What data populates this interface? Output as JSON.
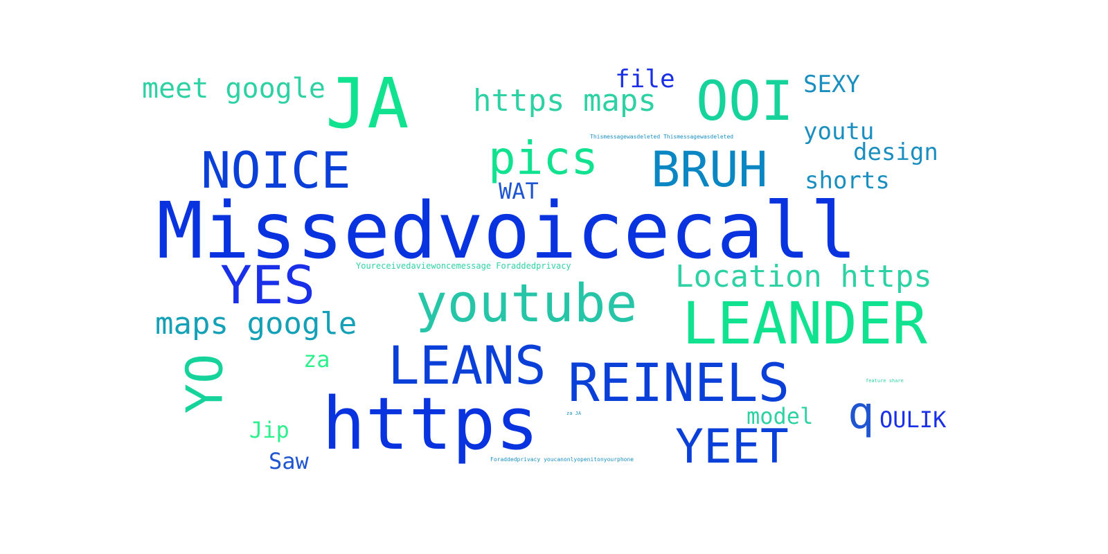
{
  "words": {
    "missedvoicecall": "Missedvoicecall",
    "https": "https",
    "leander": "LEANDER",
    "ja": "JA",
    "ooi": "OOI",
    "youtube": "youtube",
    "reinels": "REINELS",
    "leans": "LEANS",
    "noice": "NOICE",
    "bruh": "BRUH",
    "yes": "YES",
    "yeet": "YEET",
    "pics": "pics",
    "yo": "YO",
    "q": "q",
    "meet_google": "meet google",
    "https_maps": "https maps",
    "location_https": "Location https",
    "maps_google": "maps google",
    "file": "file",
    "sexy": "SEXY",
    "youtu": "youtu",
    "design": "design",
    "shorts": "shorts",
    "wat": "WAT",
    "za": "za",
    "model": "model",
    "oulik": "OULIK",
    "jip": "Jip",
    "saw": "Saw",
    "deleted": "Thismessagewasdeleted Thismessagewasdeleted",
    "viewonce": "Youreceivedaviewoncemessage Foraddedprivacy",
    "feature": "feature share",
    "small_za": "za JA",
    "privacy": "Foraddedprivacy youcanonlyopenitonyourphone"
  },
  "colors": {
    "blue_primary": "#0a33e0",
    "blue_secondary": "#1f55d0",
    "teal": "#0a86c2",
    "green": "#10e28f",
    "green_teal": "#26c5a7"
  }
}
